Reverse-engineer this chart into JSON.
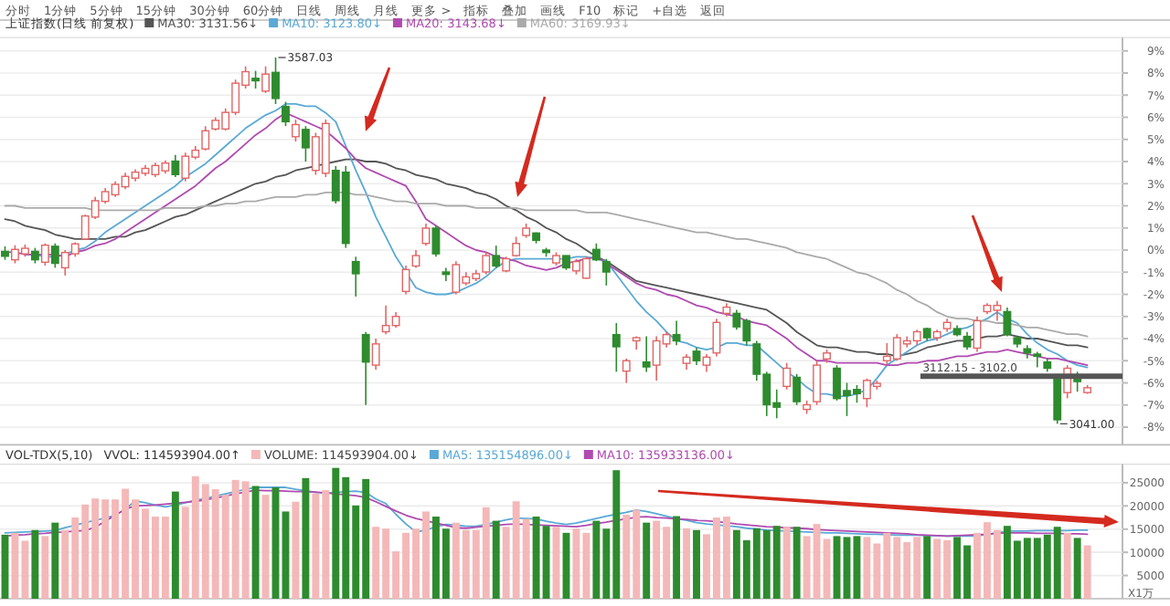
{
  "chart_data": [
    {
      "type": "candlestick",
      "title": "上证指数(日线 前复权)",
      "annotations": [
        "分时",
        "1分钟",
        "5分钟",
        "15分钟",
        "30分钟",
        "60分钟",
        "日线",
        "周线",
        "月线",
        "更多 >",
        "指标",
        "叠加",
        "画线",
        "F10",
        "标记",
        "+自选",
        "返回",
        "3587.03",
        "3041.00",
        "3112.15 - 3102.0"
      ],
      "categories": [
        null,
        null,
        null,
        null,
        null,
        null,
        null,
        null,
        null,
        null,
        null,
        null,
        null,
        null,
        null,
        null,
        null,
        null,
        null,
        null,
        null,
        null,
        null,
        null,
        null,
        null,
        null,
        null,
        null,
        null,
        null,
        null,
        null,
        null,
        null,
        null,
        null,
        null,
        null,
        null,
        null,
        null,
        null,
        null,
        null,
        null,
        null,
        null,
        null,
        null,
        null,
        null,
        null,
        null,
        null,
        null,
        null,
        null,
        null,
        null,
        null,
        null,
        null,
        null,
        null,
        null,
        null,
        null,
        null,
        null,
        null,
        null,
        null,
        null,
        null,
        null,
        null,
        null,
        null,
        null,
        null,
        null,
        null,
        null,
        null,
        null,
        null,
        null,
        null,
        null,
        null,
        null,
        null,
        null,
        null,
        null,
        null,
        null,
        null,
        null,
        null,
        null,
        null,
        null,
        null,
        null,
        null,
        null,
        null
      ],
      "ylim": [
        -8.8,
        9.6
      ],
      "yticks": [
        {
          "value": 9,
          "label": "9%"
        },
        {
          "value": 8,
          "label": "8%"
        },
        {
          "value": 7,
          "label": "7%"
        },
        {
          "value": 6,
          "label": "6%"
        },
        {
          "value": 5,
          "label": "5%"
        },
        {
          "value": 4,
          "label": "4%"
        },
        {
          "value": 3,
          "label": "3%"
        },
        {
          "value": 2,
          "label": "2%"
        },
        {
          "value": 1,
          "label": "1%"
        },
        {
          "value": 0,
          "label": "0%"
        },
        {
          "value": -1,
          "label": "-1%"
        },
        {
          "value": -2,
          "label": "-2%"
        },
        {
          "value": -3,
          "label": "-3%"
        },
        {
          "value": -4,
          "label": "-4%"
        },
        {
          "value": -5,
          "label": "-5%"
        },
        {
          "value": -6,
          "label": "-6%"
        },
        {
          "value": -7,
          "label": "-7%"
        },
        {
          "value": -8,
          "label": "-8%"
        }
      ],
      "tick_labels": "y",
      "grid": "y",
      "legend": "top left",
      "ref_lines": [
        {
          "axis": "y",
          "value": -5.7,
          "color": "#555555"
        }
      ],
      "series": [
        {
          "ohlc": [
            [
              -0.06,
              0.17,
              -0.44,
              -0.28
            ],
            [
              -0.44,
              0.22,
              -0.6,
              0.03
            ],
            [
              -0.17,
              0.25,
              -0.3,
              0.08
            ],
            [
              -0.06,
              0.1,
              -0.6,
              -0.44
            ],
            [
              -0.55,
              0.3,
              -0.7,
              0.22
            ],
            [
              0.17,
              0.3,
              -0.8,
              -0.6
            ],
            [
              -0.8,
              0,
              -1.15,
              -0.11
            ],
            [
              -0.17,
              0.35,
              -0.3,
              0.28
            ],
            [
              0.5,
              1.6,
              0.45,
              1.54
            ],
            [
              1.49,
              2.4,
              1.4,
              2.23
            ],
            [
              2.2,
              2.8,
              2.1,
              2.64
            ],
            [
              2.5,
              3.1,
              2.4,
              2.97
            ],
            [
              2.86,
              3.5,
              2.75,
              3.33
            ],
            [
              3.25,
              3.65,
              3.1,
              3.52
            ],
            [
              3.47,
              3.85,
              3.35,
              3.69
            ],
            [
              3.41,
              3.95,
              3.3,
              3.82
            ],
            [
              3.58,
              4.05,
              3.45,
              3.93
            ],
            [
              4.02,
              4.3,
              3.3,
              3.41
            ],
            [
              3.25,
              4.4,
              3.1,
              4.24
            ],
            [
              4.2,
              4.7,
              4.1,
              4.51
            ],
            [
              4.57,
              5.6,
              4.5,
              5.39
            ],
            [
              5.47,
              6.0,
              5.4,
              5.86
            ],
            [
              5.47,
              6.4,
              5.4,
              6.22
            ],
            [
              6.22,
              7.7,
              6.1,
              7.54
            ],
            [
              7.45,
              8.3,
              7.3,
              8.06
            ],
            [
              7.76,
              8.1,
              7.3,
              7.65
            ],
            [
              7.18,
              8.3,
              7.1,
              7.95
            ],
            [
              8.03,
              8.7,
              6.6,
              6.85
            ],
            [
              6.49,
              6.7,
              5.6,
              5.8
            ],
            [
              5.12,
              5.9,
              4.9,
              5.67
            ],
            [
              5.45,
              5.6,
              4.0,
              4.62
            ],
            [
              3.6,
              5.3,
              3.4,
              5.12
            ],
            [
              3.47,
              5.9,
              3.3,
              5.72
            ],
            [
              3.6,
              3.8,
              2.1,
              2.23
            ],
            [
              3.52,
              3.8,
              0.1,
              0.3
            ],
            [
              -0.52,
              -0.3,
              -2.1,
              -1.07
            ],
            [
              -3.82,
              -3.7,
              -7.0,
              -5.06
            ],
            [
              -5.2,
              -4.0,
              -5.4,
              -4.24
            ],
            [
              -3.69,
              -2.5,
              -3.8,
              -3.41
            ],
            [
              -3.41,
              -2.8,
              -3.5,
              -3.0
            ],
            [
              -1.87,
              -0.7,
              -2.0,
              -0.88
            ],
            [
              -0.72,
              0,
              -0.8,
              -0.25
            ],
            [
              0.3,
              1.2,
              0.2,
              0.99
            ],
            [
              0.99,
              1.1,
              -0.3,
              -0.17
            ],
            [
              -0.99,
              -0.8,
              -1.4,
              -1.1
            ],
            [
              -1.9,
              -0.5,
              -2.0,
              -0.66
            ],
            [
              -1.49,
              -1.0,
              -1.6,
              -1.21
            ],
            [
              -1.29,
              -0.9,
              -1.4,
              -1.07
            ],
            [
              -0.99,
              -0.1,
              -1.1,
              -0.25
            ],
            [
              -0.25,
              0.2,
              -0.8,
              -0.72
            ],
            [
              -0.94,
              -0.3,
              -1.0,
              -0.39
            ],
            [
              -0.25,
              0.6,
              -0.3,
              0.3
            ],
            [
              0.66,
              1.2,
              0.55,
              0.99
            ],
            [
              0.77,
              0.8,
              0.3,
              0.44
            ],
            [
              0,
              0.1,
              -0.3,
              -0.11
            ],
            [
              -0.58,
              -0.1,
              -0.7,
              -0.25
            ],
            [
              -0.25,
              -0.25,
              -0.9,
              -0.8
            ],
            [
              -0.94,
              -0.4,
              -1.1,
              -0.52
            ],
            [
              -1.27,
              -0.3,
              -1.3,
              -0.39
            ],
            [
              0.03,
              0.3,
              -0.5,
              -0.44
            ],
            [
              -0.52,
              -0.4,
              -1.6,
              -0.99
            ],
            [
              -3.82,
              -3.3,
              -5.5,
              -4.37
            ],
            [
              -5.47,
              -4.9,
              -6.0,
              -5.0
            ],
            [
              -4.1,
              -3.9,
              -4.5,
              -3.96
            ],
            [
              -5.06,
              -3.9,
              -5.5,
              -5.28
            ],
            [
              -5.2,
              -3.9,
              -5.9,
              -4.1
            ],
            [
              -4.24,
              -3.7,
              -4.4,
              -3.82
            ],
            [
              -3.82,
              -3.2,
              -4.3,
              -4.1
            ],
            [
              -5.12,
              -4.7,
              -5.4,
              -4.84
            ],
            [
              -4.57,
              -4.4,
              -5.2,
              -5.0
            ],
            [
              -5.2,
              -4.7,
              -5.5,
              -4.84
            ],
            [
              -4.65,
              -3.1,
              -4.8,
              -3.27
            ],
            [
              -2.86,
              -2.4,
              -3.0,
              -2.58
            ],
            [
              -2.86,
              -2.7,
              -3.6,
              -3.47
            ],
            [
              -3.19,
              -3.1,
              -4.3,
              -4.1
            ],
            [
              -4.24,
              -4.1,
              -5.9,
              -5.61
            ],
            [
              -5.61,
              -5.5,
              -7.5,
              -6.99
            ],
            [
              -6.9,
              -6.3,
              -7.6,
              -7.1
            ],
            [
              -6.16,
              -5.1,
              -6.3,
              -5.34
            ],
            [
              -5.75,
              -5.6,
              -7.0,
              -6.85
            ],
            [
              -7.2,
              -6.8,
              -7.4,
              -6.99
            ],
            [
              -6.85,
              -5.0,
              -7.0,
              -5.2
            ],
            [
              -4.92,
              -4.5,
              -5.1,
              -4.65
            ],
            [
              -5.34,
              -5.2,
              -6.8,
              -6.71
            ],
            [
              -6.35,
              -6.0,
              -7.5,
              -6.57
            ],
            [
              -6.3,
              -6.1,
              -6.9,
              -6.49
            ],
            [
              -6.71,
              -5.8,
              -7.1,
              -5.89
            ],
            [
              -6.16,
              -5.9,
              -6.3,
              -6.02
            ],
            [
              -5.0,
              -4.2,
              -5.2,
              -4.8
            ],
            [
              -4.92,
              -3.8,
              -5.0,
              -3.96
            ],
            [
              -4.24,
              -3.9,
              -4.4,
              -4.1
            ],
            [
              -4.1,
              -3.6,
              -4.3,
              -3.69
            ],
            [
              -3.55,
              -3.5,
              -4.1,
              -3.96
            ],
            [
              -3.96,
              -3.6,
              -4.1,
              -3.69
            ],
            [
              -3.55,
              -3.1,
              -3.7,
              -3.27
            ],
            [
              -3.55,
              -3.4,
              -3.9,
              -3.82
            ],
            [
              -3.9,
              -3.7,
              -4.5,
              -4.37
            ],
            [
              -4.43,
              -3.0,
              -4.6,
              -3.19
            ],
            [
              -2.78,
              -2.4,
              -2.9,
              -2.5
            ],
            [
              -2.72,
              -2.3,
              -3.2,
              -2.5
            ],
            [
              -2.78,
              -2.6,
              -3.9,
              -3.82
            ],
            [
              -3.96,
              -3.9,
              -4.4,
              -4.24
            ],
            [
              -4.46,
              -4.3,
              -4.9,
              -4.65
            ],
            [
              -4.7,
              -4.6,
              -5.3,
              -4.8
            ],
            [
              -5.06,
              -4.9,
              -5.5,
              -5.34
            ],
            [
              -5.75,
              -5.6,
              -7.85,
              -7.67
            ],
            [
              -6.44,
              -5.2,
              -6.7,
              -5.34
            ],
            [
              -5.67,
              -5.5,
              -6.4,
              -5.94
            ],
            [
              -6.44,
              -6.1,
              -6.5,
              -6.22
            ]
          ],
          "colors": [
            "#2e8b2e",
            "#e06666",
            "#e06666",
            "#2e8b2e",
            "#e06666",
            "#2e8b2e",
            "#e06666",
            "#e06666",
            "#e06666",
            "#e06666",
            "#e06666",
            "#e06666",
            "#e06666",
            "#e06666",
            "#e06666",
            "#e06666",
            "#e06666",
            "#2e8b2e",
            "#e06666",
            "#e06666",
            "#e06666",
            "#e06666",
            "#e06666",
            "#e06666",
            "#e06666",
            "#2e8b2e",
            "#e06666",
            "#2e8b2e",
            "#2e8b2e",
            "#e06666",
            "#2e8b2e",
            "#e06666",
            "#e06666",
            "#2e8b2e",
            "#2e8b2e",
            "#2e8b2e",
            "#2e8b2e",
            "#e06666",
            "#e06666",
            "#e06666",
            "#e06666",
            "#e06666",
            "#e06666",
            "#2e8b2e",
            "#2e8b2e",
            "#e06666",
            "#e06666",
            "#e06666",
            "#e06666",
            "#2e8b2e",
            "#e06666",
            "#e06666",
            "#e06666",
            "#2e8b2e",
            "#2e8b2e",
            "#e06666",
            "#2e8b2e",
            "#e06666",
            "#e06666",
            "#2e8b2e",
            "#2e8b2e",
            "#2e8b2e",
            "#e06666",
            "#e06666",
            "#2e8b2e",
            "#e06666",
            "#e06666",
            "#2e8b2e",
            "#e06666",
            "#2e8b2e",
            "#e06666",
            "#e06666",
            "#e06666",
            "#2e8b2e",
            "#2e8b2e",
            "#2e8b2e",
            "#2e8b2e",
            "#2e8b2e",
            "#e06666",
            "#2e8b2e",
            "#e06666",
            "#e06666",
            "#e06666",
            "#2e8b2e",
            "#2e8b2e",
            "#2e8b2e",
            "#e06666",
            "#e06666",
            "#e06666",
            "#e06666",
            "#e06666",
            "#e06666",
            "#2e8b2e",
            "#e06666",
            "#e06666",
            "#2e8b2e",
            "#2e8b2e",
            "#e06666",
            "#e06666",
            "#e06666",
            "#2e8b2e",
            "#2e8b2e",
            "#2e8b2e",
            "#2e8b2e",
            "#2e8b2e",
            "#2e8b2e",
            "#e06666",
            "#2e8b2e",
            "#e06666"
          ]
        },
        {
          "type": "line",
          "name": "MA30: 3131.56↓",
          "color": "#555555",
          "values": [
            1.4,
            1.3,
            1.1,
            1.0,
            0.9,
            0.7,
            0.6,
            0.5,
            0.5,
            0.5,
            0.5,
            0.6,
            0.6,
            0.8,
            0.9,
            1.1,
            1.3,
            1.5,
            1.6,
            1.8,
            2.0,
            2.2,
            2.4,
            2.6,
            2.8,
            3.0,
            3.1,
            3.3,
            3.4,
            3.6,
            3.7,
            3.8,
            3.9,
            4.0,
            4.1,
            4.1,
            4.0,
            4.0,
            3.9,
            3.7,
            3.6,
            3.4,
            3.3,
            3.2,
            3.0,
            2.9,
            2.8,
            2.6,
            2.5,
            2.3,
            2.0,
            1.8,
            1.5,
            1.3,
            1.0,
            0.8,
            0.5,
            0.3,
            0.0,
            -0.3,
            -0.5,
            -0.8,
            -1.1,
            -1.4,
            -1.5,
            -1.6,
            -1.7,
            -1.8,
            -1.9,
            -2.0,
            -2.1,
            -2.2,
            -2.3,
            -2.4,
            -2.5,
            -2.6,
            -2.7,
            -3.0,
            -3.3,
            -3.7,
            -4.0,
            -4.3,
            -4.4,
            -4.4,
            -4.5,
            -4.6,
            -4.6,
            -4.7,
            -4.7,
            -4.8,
            -4.7,
            -4.6,
            -4.4,
            -4.3,
            -4.2,
            -4.1,
            -4.1,
            -4.0,
            -3.9,
            -3.9,
            -3.8,
            -3.9,
            -4.0,
            -4.0,
            -4.1,
            -4.2,
            -4.3,
            -4.3,
            -4.4
          ]
        },
        {
          "type": "line",
          "name": "MA10: 3123.80↓",
          "color": "#5aa9d6",
          "values": [
            null,
            null,
            -0.2,
            -0.2,
            -0.3,
            -0.3,
            -0.2,
            0.0,
            0.1,
            0.4,
            0.8,
            1.1,
            1.4,
            1.7,
            2.0,
            2.3,
            2.6,
            2.9,
            3.3,
            3.6,
            3.9,
            4.3,
            4.7,
            5.1,
            5.5,
            5.8,
            6.1,
            6.3,
            6.6,
            6.6,
            6.5,
            6.5,
            6.2,
            5.8,
            4.7,
            3.6,
            2.6,
            1.5,
            0.6,
            -0.3,
            -1.0,
            -1.7,
            -1.9,
            -2.0,
            -2.0,
            -1.9,
            -1.7,
            -1.5,
            -1.2,
            -0.8,
            -0.5,
            -0.4,
            -0.4,
            -0.4,
            -0.4,
            -0.4,
            -0.4,
            -0.3,
            -0.3,
            -0.4,
            -0.5,
            -1.1,
            -1.7,
            -2.3,
            -2.8,
            -3.2,
            -3.7,
            -4.1,
            -4.2,
            -4.4,
            -4.5,
            -4.4,
            -4.2,
            -4.2,
            -4.3,
            -4.3,
            -4.7,
            -5.1,
            -5.5,
            -5.8,
            -6.2,
            -6.5,
            -6.5,
            -6.6,
            -6.6,
            -6.5,
            -6.3,
            -5.8,
            -5.2,
            -4.9,
            -4.6,
            -4.3,
            -4.1,
            -4.0,
            -3.8,
            -3.6,
            -3.5,
            -3.3,
            -3.1,
            -2.8,
            -3.1,
            -3.3,
            -3.8,
            -4.2,
            -4.5,
            -4.7,
            -5.0,
            -5.2,
            -5.3
          ]
        },
        {
          "type": "line",
          "name": "MA20: 3143.68↓",
          "color": "#b04ab0",
          "values": [
            -0.1,
            -0.1,
            -0.2,
            -0.2,
            -0.2,
            -0.2,
            -0.3,
            -0.1,
            0.0,
            0.2,
            0.3,
            0.5,
            0.8,
            1.1,
            1.4,
            1.7,
            2.0,
            2.3,
            2.6,
            2.9,
            3.3,
            3.7,
            4.0,
            4.4,
            4.8,
            5.2,
            5.5,
            5.9,
            6.2,
            6.0,
            5.8,
            5.6,
            5.4,
            5.0,
            4.6,
            4.1,
            3.7,
            3.5,
            3.3,
            3.1,
            2.9,
            2.2,
            1.4,
            1.1,
            0.8,
            0.5,
            0.2,
            0.0,
            -0.1,
            -0.3,
            -0.4,
            -0.5,
            -0.7,
            -0.8,
            -0.9,
            -0.8,
            -0.6,
            -0.5,
            -0.4,
            -0.3,
            -0.6,
            -0.9,
            -1.2,
            -1.5,
            -1.7,
            -1.8,
            -2.0,
            -2.1,
            -2.3,
            -2.5,
            -2.6,
            -2.8,
            -2.9,
            -3.0,
            -3.2,
            -3.3,
            -3.4,
            -3.7,
            -4.0,
            -4.4,
            -4.7,
            -5.0,
            -5.0,
            -5.1,
            -5.1,
            -5.1,
            -5.1,
            -5.1,
            -5.2,
            -5.2,
            -5.1,
            -5.1,
            -5.0,
            -5.0,
            -4.9,
            -4.8,
            -4.8,
            -4.7,
            -4.6,
            -4.6,
            -4.5,
            -4.6,
            -4.7,
            -4.8,
            -4.9,
            -4.9,
            -5.0,
            -5.1,
            -5.2
          ]
        },
        {
          "type": "line",
          "name": "MA60: 3169.93↓",
          "color": "#aaaaaa",
          "values": [
            2.0,
            2.0,
            1.9,
            1.9,
            1.9,
            1.9,
            1.9,
            1.9,
            1.9,
            1.8,
            1.8,
            1.8,
            1.8,
            1.8,
            1.8,
            1.8,
            1.9,
            1.9,
            1.9,
            1.9,
            2.0,
            2.0,
            2.1,
            2.1,
            2.2,
            2.2,
            2.3,
            2.4,
            2.4,
            2.4,
            2.5,
            2.5,
            2.6,
            2.6,
            2.6,
            2.5,
            2.5,
            2.4,
            2.3,
            2.2,
            2.2,
            2.1,
            2.1,
            2.1,
            2.0,
            2.0,
            2.0,
            1.9,
            1.9,
            1.9,
            1.9,
            1.9,
            1.8,
            1.8,
            1.8,
            1.8,
            1.8,
            1.8,
            1.7,
            1.7,
            1.7,
            1.6,
            1.5,
            1.4,
            1.3,
            1.2,
            1.1,
            1.0,
            0.9,
            0.8,
            0.8,
            0.7,
            0.6,
            0.5,
            0.5,
            0.4,
            0.3,
            0.2,
            0.1,
            -0.1,
            -0.2,
            -0.3,
            -0.4,
            -0.6,
            -0.8,
            -1.0,
            -1.1,
            -1.3,
            -1.5,
            -1.8,
            -2.0,
            -2.3,
            -2.5,
            -2.8,
            -3.0,
            -3.1,
            -3.1,
            -3.2,
            -3.2,
            -3.3,
            -3.3,
            -3.4,
            -3.5,
            -3.5,
            -3.6,
            -3.7,
            -3.8,
            -3.8,
            -3.9
          ]
        }
      ]
    },
    {
      "type": "bar",
      "title": "VOL-TDX(5,10)",
      "annotations": [
        "VVOL: 114593904.00↑"
      ],
      "ylabel": "X1万",
      "categories": [
        null,
        null,
        null,
        null,
        null,
        null,
        null,
        null,
        null,
        null,
        null,
        null,
        null,
        null,
        null,
        null,
        null,
        null,
        null,
        null,
        null,
        null,
        null,
        null,
        null,
        null,
        null,
        null,
        null,
        null,
        null,
        null,
        null,
        null,
        null,
        null,
        null,
        null,
        null,
        null,
        null,
        null,
        null,
        null,
        null,
        null,
        null,
        null,
        null,
        null,
        null,
        null,
        null,
        null,
        null,
        null,
        null,
        null,
        null,
        null,
        null,
        null,
        null,
        null,
        null,
        null,
        null,
        null,
        null,
        null,
        null,
        null,
        null,
        null,
        null,
        null,
        null,
        null,
        null,
        null,
        null,
        null,
        null,
        null,
        null,
        null,
        null,
        null,
        null,
        null,
        null,
        null,
        null,
        null,
        null,
        null,
        null,
        null,
        null,
        null,
        null,
        null,
        null,
        null,
        null,
        null,
        null,
        null,
        null
      ],
      "ylim": [
        0,
        29000
      ],
      "yticks": [
        5000,
        10000,
        15000,
        20000,
        25000
      ],
      "tick_labels": "y",
      "grid": "y",
      "legend": "top left",
      "series": [
        {
          "name": "VOLUME: 114593904.00↓",
          "values": [
            13800,
            14200,
            12500,
            14800,
            13500,
            16400,
            14800,
            17500,
            20300,
            21600,
            21400,
            21400,
            23700,
            21400,
            19400,
            17700,
            17700,
            23100,
            19800,
            26400,
            24700,
            23600,
            22400,
            25600,
            25300,
            24300,
            22400,
            24000,
            18800,
            20900,
            26000,
            22700,
            23400,
            28200,
            26200,
            20100,
            25800,
            15500,
            15100,
            10200,
            14200,
            15100,
            18800,
            17700,
            15100,
            16400,
            14800,
            14800,
            19700,
            16800,
            15500,
            21000,
            17200,
            17700,
            15700,
            15500,
            14200,
            15100,
            14200,
            16800,
            15100,
            27700,
            18100,
            19200,
            16400,
            16800,
            15500,
            17800,
            15200,
            14800,
            13900,
            17500,
            17700,
            14800,
            12600,
            15200,
            14800,
            15700,
            15500,
            15500,
            13500,
            16100,
            12900,
            13500,
            13300,
            13500,
            13300,
            11900,
            14200,
            13300,
            12200,
            13300,
            13500,
            12900,
            12600,
            13300,
            11500,
            14200,
            16500,
            14800,
            15700,
            12500,
            13100,
            13100,
            13800,
            15500,
            14200,
            13100,
            11500
          ],
          "colors": [
            "#2e8b2e",
            "#f4b8b8",
            "#f4b8b8",
            "#2e8b2e",
            "#f4b8b8",
            "#2e8b2e",
            "#f4b8b8",
            "#f4b8b8",
            "#f4b8b8",
            "#f4b8b8",
            "#f4b8b8",
            "#f4b8b8",
            "#f4b8b8",
            "#f4b8b8",
            "#f4b8b8",
            "#f4b8b8",
            "#f4b8b8",
            "#2e8b2e",
            "#f4b8b8",
            "#f4b8b8",
            "#f4b8b8",
            "#f4b8b8",
            "#f4b8b8",
            "#f4b8b8",
            "#f4b8b8",
            "#2e8b2e",
            "#f4b8b8",
            "#2e8b2e",
            "#2e8b2e",
            "#f4b8b8",
            "#2e8b2e",
            "#f4b8b8",
            "#f4b8b8",
            "#2e8b2e",
            "#2e8b2e",
            "#2e8b2e",
            "#2e8b2e",
            "#f4b8b8",
            "#f4b8b8",
            "#f4b8b8",
            "#f4b8b8",
            "#f4b8b8",
            "#f4b8b8",
            "#2e8b2e",
            "#2e8b2e",
            "#f4b8b8",
            "#f4b8b8",
            "#f4b8b8",
            "#f4b8b8",
            "#2e8b2e",
            "#f4b8b8",
            "#f4b8b8",
            "#f4b8b8",
            "#2e8b2e",
            "#2e8b2e",
            "#f4b8b8",
            "#2e8b2e",
            "#f4b8b8",
            "#f4b8b8",
            "#2e8b2e",
            "#2e8b2e",
            "#2e8b2e",
            "#f4b8b8",
            "#f4b8b8",
            "#2e8b2e",
            "#f4b8b8",
            "#f4b8b8",
            "#2e8b2e",
            "#f4b8b8",
            "#2e8b2e",
            "#f4b8b8",
            "#f4b8b8",
            "#f4b8b8",
            "#2e8b2e",
            "#2e8b2e",
            "#2e8b2e",
            "#2e8b2e",
            "#2e8b2e",
            "#f4b8b8",
            "#2e8b2e",
            "#f4b8b8",
            "#f4b8b8",
            "#f4b8b8",
            "#2e8b2e",
            "#2e8b2e",
            "#2e8b2e",
            "#f4b8b8",
            "#f4b8b8",
            "#f4b8b8",
            "#f4b8b8",
            "#f4b8b8",
            "#f4b8b8",
            "#2e8b2e",
            "#f4b8b8",
            "#f4b8b8",
            "#2e8b2e",
            "#2e8b2e",
            "#f4b8b8",
            "#f4b8b8",
            "#f4b8b8",
            "#2e8b2e",
            "#2e8b2e",
            "#2e8b2e",
            "#2e8b2e",
            "#2e8b2e",
            "#2e8b2e",
            "#f4b8b8",
            "#2e8b2e",
            "#f4b8b8"
          ]
        },
        {
          "type": "line",
          "name": "MA5: 135154896.00↓",
          "color": "#5aa9d6",
          "values": [
            14200,
            14300,
            14400,
            14500,
            14600,
            14700,
            15300,
            15800,
            16400,
            16900,
            17400,
            18000,
            19300,
            21100,
            20700,
            20200,
            19800,
            20200,
            20700,
            21200,
            21600,
            22100,
            22600,
            23100,
            23600,
            24000,
            24000,
            24000,
            24000,
            23600,
            23300,
            22900,
            22800,
            22900,
            23100,
            23200,
            22900,
            21500,
            20500,
            18200,
            16100,
            14400,
            14800,
            15500,
            16000,
            15900,
            15600,
            15600,
            16000,
            16500,
            17000,
            17400,
            17300,
            17200,
            16700,
            16300,
            16000,
            16300,
            16800,
            17300,
            17800,
            18200,
            18600,
            19100,
            18800,
            18300,
            17800,
            17300,
            16900,
            16400,
            16100,
            15900,
            15700,
            15500,
            15200,
            15000,
            14800,
            14700,
            14600,
            14500,
            14400,
            14300,
            14200,
            14200,
            14100,
            14000,
            13900,
            13900,
            13800,
            13700,
            13700,
            13700,
            13600,
            13600,
            13500,
            13500,
            13500,
            13500,
            13900,
            14200,
            14600,
            14600,
            14600,
            14700,
            14700,
            14700,
            14700,
            14800,
            14800
          ]
        },
        {
          "type": "line",
          "name": "MA10: 135933136.00↓",
          "color": "#b04ab0",
          "values": [
            13500,
            13700,
            13800,
            14000,
            14100,
            14300,
            14400,
            14600,
            14700,
            15400,
            16700,
            18000,
            19300,
            20000,
            20100,
            20200,
            20400,
            20600,
            20800,
            21000,
            21300,
            21700,
            22100,
            22600,
            23000,
            23400,
            23300,
            23300,
            23200,
            23100,
            23100,
            23000,
            22800,
            22600,
            22400,
            22200,
            21800,
            20900,
            19900,
            18900,
            18000,
            17300,
            16800,
            16300,
            15800,
            15300,
            15200,
            15400,
            15600,
            15800,
            16000,
            16100,
            16000,
            15900,
            15800,
            15700,
            15600,
            15500,
            15800,
            16200,
            16500,
            16900,
            17200,
            17600,
            17700,
            17500,
            17400,
            17200,
            17100,
            16900,
            16800,
            16600,
            16400,
            16100,
            15900,
            15700,
            15500,
            15400,
            15300,
            15200,
            15100,
            14900,
            14800,
            14700,
            14600,
            14500,
            14400,
            14300,
            14200,
            14100,
            14000,
            13800,
            13700,
            13600,
            13500,
            13600,
            13700,
            13800,
            13900,
            14100,
            14200,
            14200,
            14200,
            14100,
            14100,
            14100,
            14000,
            14000,
            13900
          ]
        }
      ]
    }
  ]
}
